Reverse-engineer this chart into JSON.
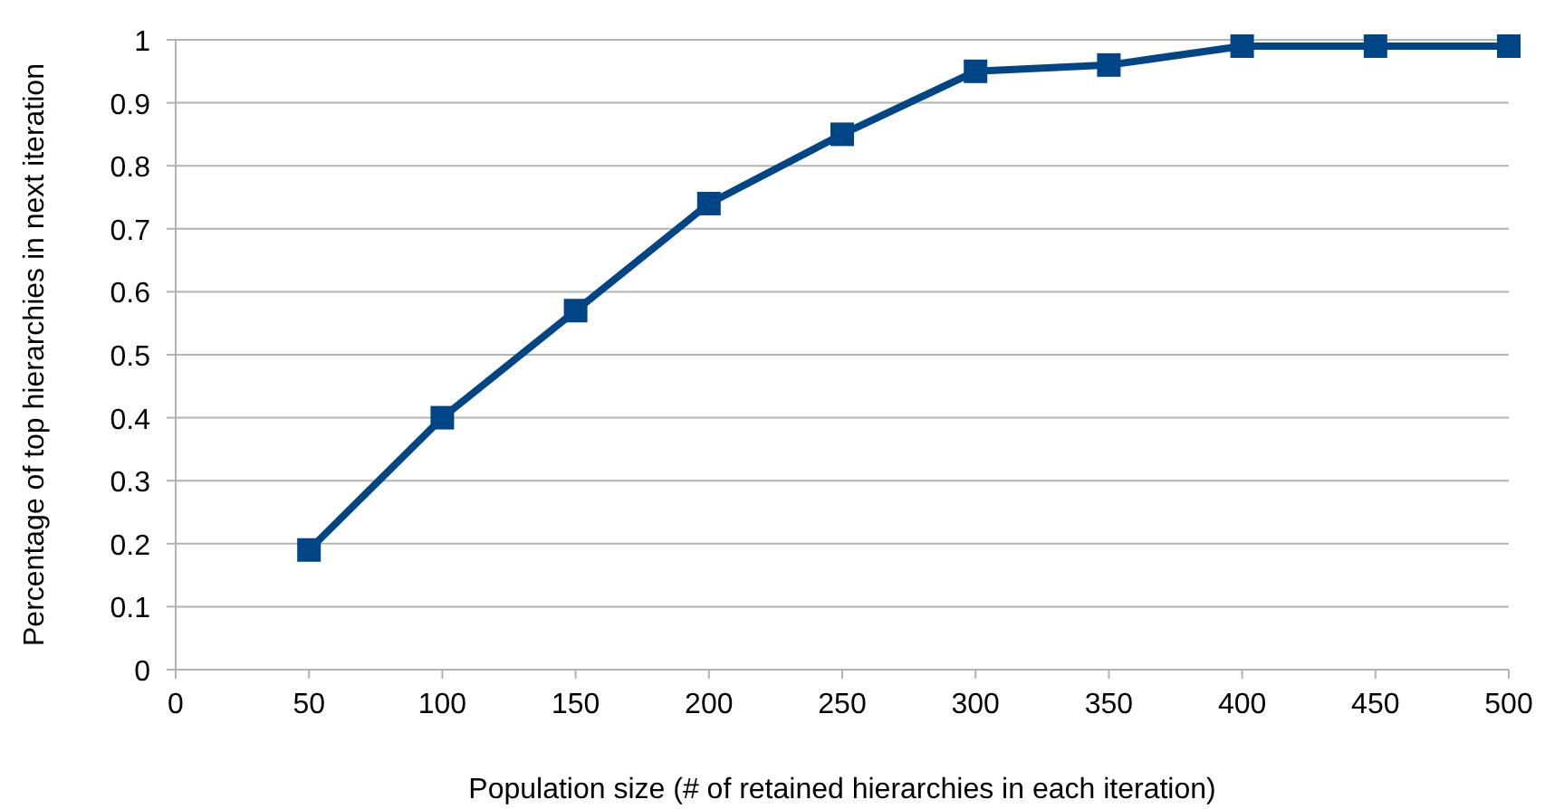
{
  "chart_data": {
    "type": "line",
    "xlabel": "Population size (# of retained hierarchies in each iteration)",
    "ylabel": "Percentage of top hierarchies in next iteration",
    "x": [
      50,
      100,
      150,
      200,
      250,
      300,
      350,
      400,
      450,
      500
    ],
    "series": [
      {
        "color": "#004586",
        "values": [
          0.19,
          0.4,
          0.57,
          0.74,
          0.85,
          0.95,
          0.96,
          0.99,
          0.99,
          0.99
        ]
      }
    ],
    "xlim": [
      0,
      500
    ],
    "xticks": [
      0,
      50,
      100,
      150,
      200,
      250,
      300,
      350,
      400,
      450,
      500
    ],
    "ylim": [
      0,
      1
    ],
    "yticks": [
      0,
      0.1,
      0.2,
      0.3,
      0.4,
      0.5,
      0.6,
      0.7,
      0.8,
      0.9,
      1
    ],
    "grid": "y",
    "marker": "square",
    "line_style": "solid"
  }
}
